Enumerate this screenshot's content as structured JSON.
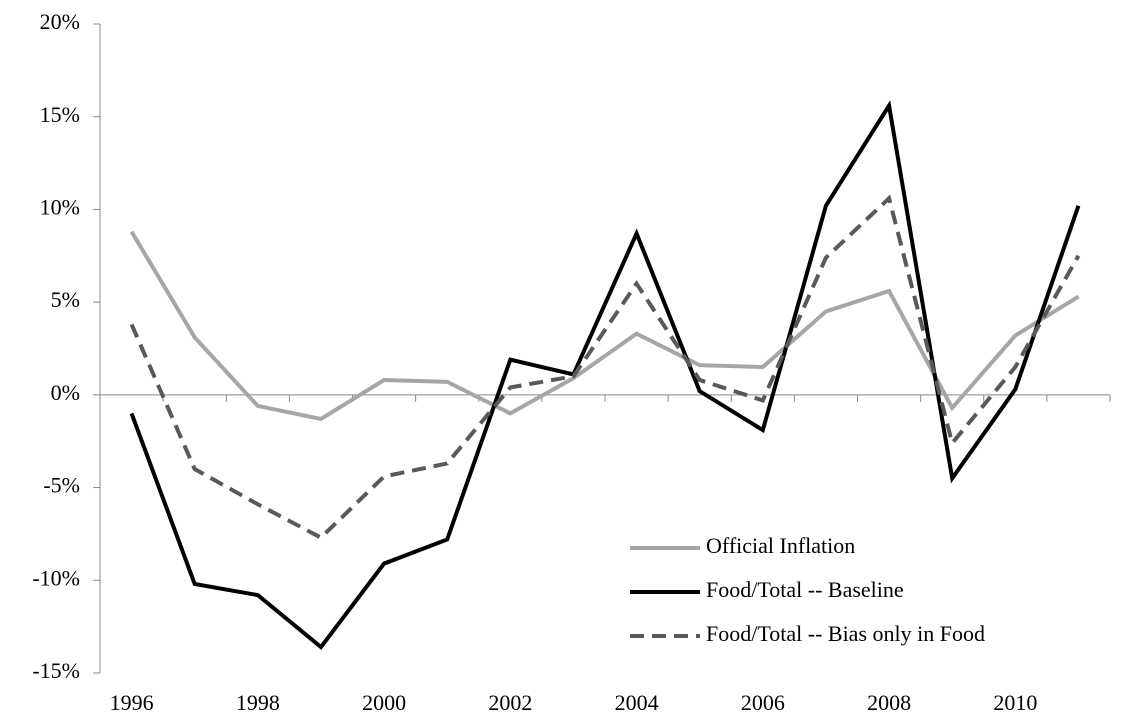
{
  "chart_data": {
    "type": "line",
    "categories": [
      "1996",
      null,
      "1998",
      null,
      "2000",
      null,
      "2002",
      null,
      "2004",
      null,
      "2006",
      null,
      "2008",
      null,
      "2010",
      null
    ],
    "series": [
      {
        "name": "Official Inflation",
        "color": "#a6a6a6",
        "dashed": false,
        "values": [
          8.8,
          3.1,
          -0.6,
          -1.3,
          0.8,
          0.7,
          -1.0,
          0.9,
          3.3,
          1.6,
          1.5,
          4.5,
          5.6,
          -0.7,
          3.2,
          5.3
        ]
      },
      {
        "name": "Food/Total -- Baseline",
        "color": "#000000",
        "dashed": false,
        "values": [
          -1.0,
          -10.2,
          -10.8,
          -13.6,
          -9.1,
          -7.8,
          1.9,
          1.1,
          8.7,
          0.2,
          -1.9,
          10.2,
          15.6,
          -4.5,
          0.3,
          10.2
        ]
      },
      {
        "name": "Food/Total -- Bias only in Food",
        "color": "#595959",
        "dashed": true,
        "values": [
          3.8,
          -4.0,
          -5.9,
          -7.7,
          -4.4,
          -3.7,
          0.4,
          1.0,
          6.0,
          0.8,
          -0.3,
          7.4,
          10.6,
          -2.6,
          1.5,
          7.5
        ]
      }
    ],
    "ylim": [
      -15,
      20
    ],
    "yticks": [
      {
        "value": -15,
        "label": "-15%"
      },
      {
        "value": -10,
        "label": "-10%"
      },
      {
        "value": -5,
        "label": "-5%"
      },
      {
        "value": 0,
        "label": "0%"
      },
      {
        "value": 5,
        "label": "5%"
      },
      {
        "value": 10,
        "label": "10%"
      },
      {
        "value": 15,
        "label": "15%"
      },
      {
        "value": 20,
        "label": "20%"
      }
    ],
    "grid": false,
    "legend": "lower right"
  }
}
